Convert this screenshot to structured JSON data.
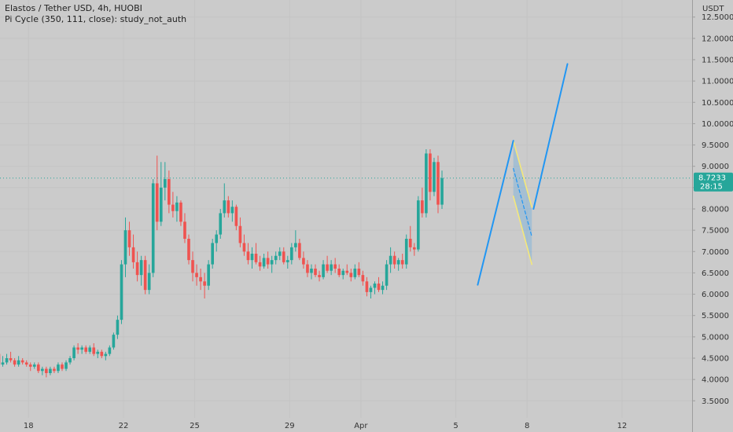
{
  "legend": {
    "title": "Elastos / Tether USD, 4h, HUOBI",
    "study": "Pi Cycle (350, 111, close): study_not_auth"
  },
  "chart_data": {
    "type": "candlestick",
    "y_axis_label": "USDT",
    "y_ticks": [
      3.5,
      4.0,
      4.5,
      5.0,
      5.5,
      6.0,
      6.5,
      7.0,
      7.5,
      8.0,
      8.5,
      9.0,
      9.5,
      10.0,
      10.5,
      11.0,
      11.5,
      12.0,
      12.5
    ],
    "y_tick_labels": [
      "3.5000",
      "4.0000",
      "4.5000",
      "5.0000",
      "5.5000",
      "6.0000",
      "6.5000",
      "7.0000",
      "7.5000",
      "8.0000",
      "8.5000",
      "9.0000",
      "9.5000",
      "10.0000",
      "10.5000",
      "11.0000",
      "11.5000",
      "12.0000",
      "12.5000"
    ],
    "ylim": [
      3.1,
      12.9
    ],
    "x_ticks": [
      {
        "label": "18",
        "day": 18
      },
      {
        "label": "22",
        "day": 22
      },
      {
        "label": "25",
        "day": 25
      },
      {
        "label": "29",
        "day": 29
      },
      {
        "label": "Apr",
        "day": 32
      },
      {
        "label": "5",
        "day": 36
      },
      {
        "label": "8",
        "day": 39
      },
      {
        "label": "12",
        "day": 43
      }
    ],
    "xlim": [
      16.8,
      45.95
    ],
    "last_price": "8.7233",
    "countdown": "28:15",
    "colors": {
      "up": "#26a69a",
      "down": "#ef5350",
      "trend": "#2196f3",
      "channel": "#f5e87a",
      "price_line": "#26a69a"
    },
    "candles_4h": [
      [
        4.6,
        4.7,
        4.4,
        4.35
      ],
      [
        4.35,
        4.55,
        4.3,
        4.4
      ],
      [
        4.4,
        4.6,
        4.35,
        4.5
      ],
      [
        4.5,
        4.65,
        4.4,
        4.45
      ],
      [
        4.45,
        4.5,
        4.3,
        4.35
      ],
      [
        4.35,
        4.55,
        4.3,
        4.45
      ],
      [
        4.45,
        4.5,
        4.35,
        4.4
      ],
      [
        4.4,
        4.45,
        4.3,
        4.35
      ],
      [
        4.35,
        4.4,
        4.2,
        4.3
      ],
      [
        4.3,
        4.4,
        4.25,
        4.35
      ],
      [
        4.35,
        4.4,
        4.15,
        4.2
      ],
      [
        4.2,
        4.3,
        4.1,
        4.25
      ],
      [
        4.25,
        4.3,
        4.05,
        4.15
      ],
      [
        4.15,
        4.3,
        4.1,
        4.25
      ],
      [
        4.25,
        4.3,
        4.15,
        4.2
      ],
      [
        4.2,
        4.4,
        4.15,
        4.35
      ],
      [
        4.35,
        4.4,
        4.2,
        4.25
      ],
      [
        4.25,
        4.45,
        4.2,
        4.4
      ],
      [
        4.4,
        4.55,
        4.35,
        4.5
      ],
      [
        4.5,
        4.8,
        4.45,
        4.75
      ],
      [
        4.75,
        4.85,
        4.6,
        4.7
      ],
      [
        4.7,
        4.8,
        4.6,
        4.75
      ],
      [
        4.75,
        4.8,
        4.6,
        4.65
      ],
      [
        4.65,
        4.8,
        4.6,
        4.75
      ],
      [
        4.75,
        4.85,
        4.55,
        4.6
      ],
      [
        4.6,
        4.7,
        4.5,
        4.65
      ],
      [
        4.65,
        4.7,
        4.5,
        4.55
      ],
      [
        4.55,
        4.65,
        4.45,
        4.6
      ],
      [
        4.6,
        4.8,
        4.55,
        4.75
      ],
      [
        4.75,
        5.1,
        4.7,
        5.05
      ],
      [
        5.05,
        5.5,
        4.95,
        5.4
      ],
      [
        5.4,
        6.8,
        5.3,
        6.7
      ],
      [
        6.7,
        7.8,
        6.4,
        7.5
      ],
      [
        7.5,
        7.7,
        6.9,
        7.1
      ],
      [
        7.1,
        7.4,
        6.6,
        6.75
      ],
      [
        6.75,
        7.0,
        6.3,
        6.45
      ],
      [
        6.45,
        6.9,
        6.2,
        6.8
      ],
      [
        6.8,
        6.9,
        6.0,
        6.1
      ],
      [
        6.1,
        6.7,
        6.0,
        6.5
      ],
      [
        6.5,
        8.7,
        6.4,
        8.6
      ],
      [
        8.6,
        9.25,
        7.5,
        7.7
      ],
      [
        7.7,
        9.1,
        7.6,
        8.5
      ],
      [
        8.5,
        9.1,
        8.2,
        8.7
      ],
      [
        8.7,
        8.9,
        7.9,
        8.1
      ],
      [
        8.1,
        8.4,
        7.8,
        7.95
      ],
      [
        7.95,
        8.3,
        7.7,
        8.15
      ],
      [
        8.15,
        8.2,
        7.6,
        7.7
      ],
      [
        7.7,
        7.9,
        7.2,
        7.3
      ],
      [
        7.3,
        7.4,
        6.7,
        6.8
      ],
      [
        6.8,
        7.0,
        6.3,
        6.5
      ],
      [
        6.5,
        6.7,
        6.2,
        6.4
      ],
      [
        6.4,
        6.6,
        6.1,
        6.3
      ],
      [
        6.3,
        6.5,
        5.9,
        6.2
      ],
      [
        6.2,
        6.8,
        6.1,
        6.7
      ],
      [
        6.7,
        7.3,
        6.6,
        7.2
      ],
      [
        7.2,
        7.5,
        7.0,
        7.4
      ],
      [
        7.4,
        8.0,
        7.3,
        7.9
      ],
      [
        7.9,
        8.6,
        7.8,
        8.2
      ],
      [
        8.2,
        8.3,
        7.8,
        7.9
      ],
      [
        7.9,
        8.2,
        7.7,
        8.05
      ],
      [
        8.05,
        8.1,
        7.5,
        7.6
      ],
      [
        7.6,
        7.8,
        7.1,
        7.2
      ],
      [
        7.2,
        7.4,
        6.9,
        7.0
      ],
      [
        7.0,
        7.2,
        6.7,
        6.8
      ],
      [
        6.8,
        7.1,
        6.6,
        6.95
      ],
      [
        6.95,
        7.2,
        6.7,
        6.75
      ],
      [
        6.75,
        6.9,
        6.55,
        6.65
      ],
      [
        6.65,
        6.95,
        6.6,
        6.85
      ],
      [
        6.85,
        7.0,
        6.6,
        6.7
      ],
      [
        6.7,
        6.9,
        6.5,
        6.8
      ],
      [
        6.8,
        7.0,
        6.7,
        6.9
      ],
      [
        6.9,
        7.1,
        6.8,
        7.0
      ],
      [
        7.0,
        7.1,
        6.7,
        6.75
      ],
      [
        6.75,
        6.9,
        6.6,
        6.8
      ],
      [
        6.8,
        7.2,
        6.7,
        7.1
      ],
      [
        7.1,
        7.5,
        7.0,
        7.2
      ],
      [
        7.2,
        7.3,
        6.8,
        6.85
      ],
      [
        6.85,
        7.0,
        6.6,
        6.7
      ],
      [
        6.7,
        6.8,
        6.4,
        6.5
      ],
      [
        6.5,
        6.7,
        6.35,
        6.6
      ],
      [
        6.6,
        6.7,
        6.4,
        6.45
      ],
      [
        6.45,
        6.55,
        6.3,
        6.4
      ],
      [
        6.4,
        6.8,
        6.35,
        6.7
      ],
      [
        6.7,
        6.9,
        6.5,
        6.55
      ],
      [
        6.55,
        6.8,
        6.45,
        6.7
      ],
      [
        6.7,
        6.85,
        6.5,
        6.6
      ],
      [
        6.6,
        6.7,
        6.4,
        6.45
      ],
      [
        6.45,
        6.6,
        6.35,
        6.55
      ],
      [
        6.55,
        6.7,
        6.45,
        6.5
      ],
      [
        6.5,
        6.6,
        6.3,
        6.4
      ],
      [
        6.4,
        6.7,
        6.35,
        6.6
      ],
      [
        6.6,
        6.75,
        6.4,
        6.45
      ],
      [
        6.45,
        6.55,
        6.2,
        6.3
      ],
      [
        6.3,
        6.4,
        5.95,
        6.05
      ],
      [
        6.05,
        6.2,
        5.9,
        6.15
      ],
      [
        6.15,
        6.3,
        6.0,
        6.25
      ],
      [
        6.25,
        6.4,
        6.05,
        6.1
      ],
      [
        6.1,
        6.3,
        6.0,
        6.2
      ],
      [
        6.2,
        6.8,
        6.1,
        6.7
      ],
      [
        6.7,
        7.1,
        6.5,
        6.9
      ],
      [
        6.9,
        7.0,
        6.6,
        6.7
      ],
      [
        6.7,
        6.85,
        6.55,
        6.8
      ],
      [
        6.8,
        6.95,
        6.6,
        6.7
      ],
      [
        6.7,
        7.4,
        6.6,
        7.3
      ],
      [
        7.3,
        7.6,
        7.0,
        7.1
      ],
      [
        7.1,
        7.2,
        6.9,
        7.05
      ],
      [
        7.05,
        8.3,
        7.0,
        8.2
      ],
      [
        8.2,
        8.5,
        7.8,
        7.9
      ],
      [
        7.9,
        9.4,
        7.8,
        9.3
      ],
      [
        9.3,
        9.4,
        8.2,
        8.4
      ],
      [
        8.4,
        9.2,
        8.3,
        9.1
      ],
      [
        9.1,
        9.25,
        7.9,
        8.1
      ],
      [
        8.1,
        8.9,
        8.0,
        8.7233
      ]
    ],
    "annotations": {
      "trend_up_1": [
        [
          36.92,
          6.22
        ],
        [
          38.42,
          9.6
        ]
      ],
      "trend_up_2": [
        [
          39.27,
          8.0
        ],
        [
          40.7,
          11.4
        ]
      ],
      "channel_upper": [
        [
          38.42,
          9.6
        ],
        [
          39.2,
          8.04
        ]
      ],
      "channel_lower": [
        [
          38.42,
          8.3
        ],
        [
          39.2,
          6.7
        ]
      ],
      "channel_mid_dashed": [
        [
          38.42,
          8.95
        ],
        [
          39.2,
          7.35
        ]
      ]
    }
  }
}
